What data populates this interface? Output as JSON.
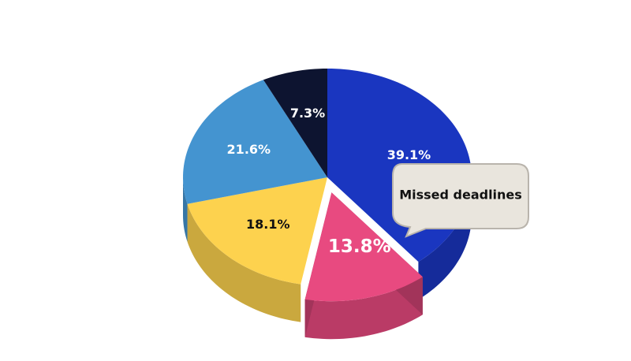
{
  "chart_data": {
    "type": "pie",
    "categories": [
      null,
      "Missed deadlines",
      null,
      null,
      null
    ],
    "values": [
      39.1,
      13.8,
      18.1,
      21.6,
      7.3
    ],
    "value_labels": [
      "39.1%",
      "13.8%",
      "18.1%",
      "21.6%",
      "7.3%"
    ],
    "colors": [
      "#1a36c0",
      "#e84a80",
      "#fdd24e",
      "#4494d0",
      "#0d1430"
    ]
  }
}
